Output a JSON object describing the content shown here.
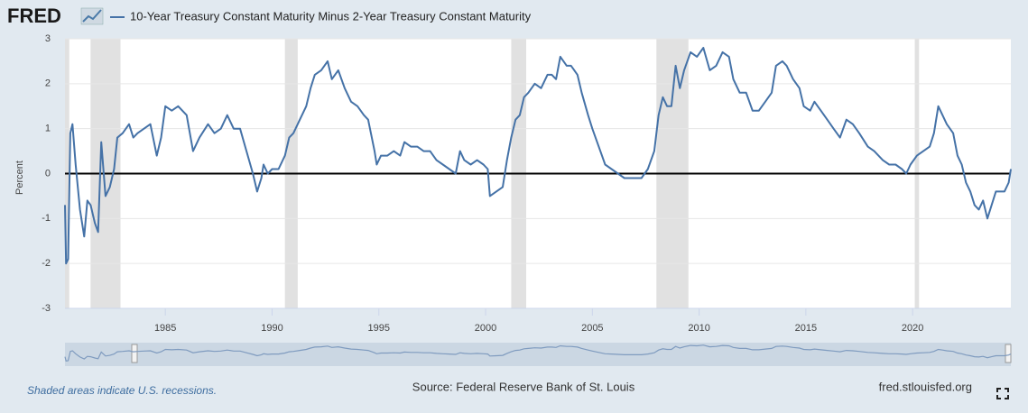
{
  "chart_data": {
    "type": "line",
    "logo": "FRED",
    "ylabel": "Percent",
    "note": "Shaded areas indicate U.S. recessions.",
    "source": "Source: Federal Reserve Bank of St. Louis",
    "site": "fred.stlouisfed.org",
    "xlim": [
      1980.3,
      2024.6
    ],
    "xticks": [
      1985,
      1990,
      1995,
      2000,
      2005,
      2010,
      2015,
      2020
    ],
    "ylim": [
      -3,
      3
    ],
    "yticks": [
      -3,
      -2,
      -1,
      0,
      1,
      2,
      3
    ],
    "grid": true,
    "zero_line": true,
    "recessions": [
      [
        1980.0,
        1980.5
      ],
      [
        1981.5,
        1982.9
      ],
      [
        1990.6,
        1991.2
      ],
      [
        2001.2,
        2001.9
      ],
      [
        2008.0,
        2009.5
      ],
      [
        2020.1,
        2020.3
      ]
    ],
    "x": [
      1980.3,
      1980.35,
      1980.45,
      1980.55,
      1980.65,
      1980.8,
      1981.0,
      1981.2,
      1981.35,
      1981.5,
      1981.7,
      1981.85,
      1982.0,
      1982.2,
      1982.4,
      1982.6,
      1982.75,
      1983.0,
      1983.3,
      1983.5,
      1983.7,
      1984.0,
      1984.3,
      1984.6,
      1984.8,
      1985.0,
      1985.3,
      1985.6,
      1986.0,
      1986.3,
      1986.6,
      1987.0,
      1987.3,
      1987.6,
      1987.9,
      1988.2,
      1988.5,
      1988.8,
      1989.1,
      1989.3,
      1989.5,
      1989.6,
      1989.8,
      1990.0,
      1990.3,
      1990.6,
      1990.8,
      1991.0,
      1991.3,
      1991.6,
      1991.8,
      1992.0,
      1992.3,
      1992.6,
      1992.8,
      1993.1,
      1993.4,
      1993.7,
      1994.0,
      1994.3,
      1994.5,
      1994.8,
      1994.9,
      1995.1,
      1995.4,
      1995.7,
      1996.0,
      1996.2,
      1996.5,
      1996.8,
      1997.1,
      1997.4,
      1997.7,
      1998.0,
      1998.3,
      1998.6,
      1998.8,
      1999.0,
      1999.3,
      1999.6,
      1999.9,
      2000.1,
      2000.2,
      2000.5,
      2000.8,
      2001.0,
      2001.2,
      2001.4,
      2001.6,
      2001.8,
      2002.0,
      2002.3,
      2002.6,
      2002.9,
      2003.1,
      2003.3,
      2003.5,
      2003.8,
      2004.0,
      2004.3,
      2004.5,
      2004.8,
      2005.0,
      2005.3,
      2005.6,
      2005.9,
      2006.2,
      2006.5,
      2006.8,
      2007.0,
      2007.3,
      2007.6,
      2007.9,
      2008.1,
      2008.3,
      2008.5,
      2008.7,
      2008.9,
      2009.1,
      2009.3,
      2009.6,
      2009.9,
      2010.2,
      2010.5,
      2010.8,
      2011.1,
      2011.4,
      2011.6,
      2011.9,
      2012.2,
      2012.5,
      2012.8,
      2013.1,
      2013.4,
      2013.6,
      2013.9,
      2014.1,
      2014.4,
      2014.7,
      2014.9,
      2015.2,
      2015.4,
      2015.7,
      2016.0,
      2016.3,
      2016.6,
      2016.9,
      2017.2,
      2017.5,
      2017.9,
      2018.2,
      2018.6,
      2018.9,
      2019.2,
      2019.5,
      2019.7,
      2019.9,
      2020.2,
      2020.5,
      2020.8,
      2021.0,
      2021.2,
      2021.4,
      2021.6,
      2021.9,
      2022.1,
      2022.3,
      2022.5,
      2022.7,
      2022.9,
      2023.1,
      2023.3,
      2023.5,
      2023.7,
      2023.9,
      2024.1,
      2024.3,
      2024.5,
      2024.6
    ],
    "series": [
      {
        "name": "10-Year Treasury Constant Maturity Minus 2-Year Treasury Constant Maturity",
        "color": "#4572a7",
        "values": [
          -0.7,
          -2.0,
          -1.9,
          0.9,
          1.1,
          0.2,
          -0.8,
          -1.4,
          -0.6,
          -0.7,
          -1.1,
          -1.3,
          0.7,
          -0.5,
          -0.3,
          0.1,
          0.8,
          0.9,
          1.1,
          0.8,
          0.9,
          1.0,
          1.1,
          0.4,
          0.8,
          1.5,
          1.4,
          1.5,
          1.3,
          0.5,
          0.8,
          1.1,
          0.9,
          1.0,
          1.3,
          1.0,
          1.0,
          0.5,
          0.0,
          -0.4,
          -0.1,
          0.2,
          0.0,
          0.1,
          0.1,
          0.4,
          0.8,
          0.9,
          1.2,
          1.5,
          1.9,
          2.2,
          2.3,
          2.5,
          2.1,
          2.3,
          1.9,
          1.6,
          1.5,
          1.3,
          1.2,
          0.5,
          0.2,
          0.4,
          0.4,
          0.5,
          0.4,
          0.7,
          0.6,
          0.6,
          0.5,
          0.5,
          0.3,
          0.2,
          0.1,
          0.0,
          0.5,
          0.3,
          0.2,
          0.3,
          0.2,
          0.1,
          -0.5,
          -0.4,
          -0.3,
          0.3,
          0.8,
          1.2,
          1.3,
          1.7,
          1.8,
          2.0,
          1.9,
          2.2,
          2.2,
          2.1,
          2.6,
          2.4,
          2.4,
          2.2,
          1.8,
          1.3,
          1.0,
          0.6,
          0.2,
          0.1,
          0.0,
          -0.1,
          -0.1,
          -0.1,
          -0.1,
          0.1,
          0.5,
          1.3,
          1.7,
          1.5,
          1.5,
          2.4,
          1.9,
          2.3,
          2.7,
          2.6,
          2.8,
          2.3,
          2.4,
          2.7,
          2.6,
          2.1,
          1.8,
          1.8,
          1.4,
          1.4,
          1.6,
          1.8,
          2.4,
          2.5,
          2.4,
          2.1,
          1.9,
          1.5,
          1.4,
          1.6,
          1.4,
          1.2,
          1.0,
          0.8,
          1.2,
          1.1,
          0.9,
          0.6,
          0.5,
          0.3,
          0.2,
          0.2,
          0.1,
          0.0,
          0.2,
          0.4,
          0.5,
          0.6,
          0.9,
          1.5,
          1.3,
          1.1,
          0.9,
          0.4,
          0.2,
          -0.2,
          -0.4,
          -0.7,
          -0.8,
          -0.6,
          -1.0,
          -0.7,
          -0.4,
          -0.4,
          -0.4,
          -0.2,
          0.1
        ]
      }
    ]
  }
}
